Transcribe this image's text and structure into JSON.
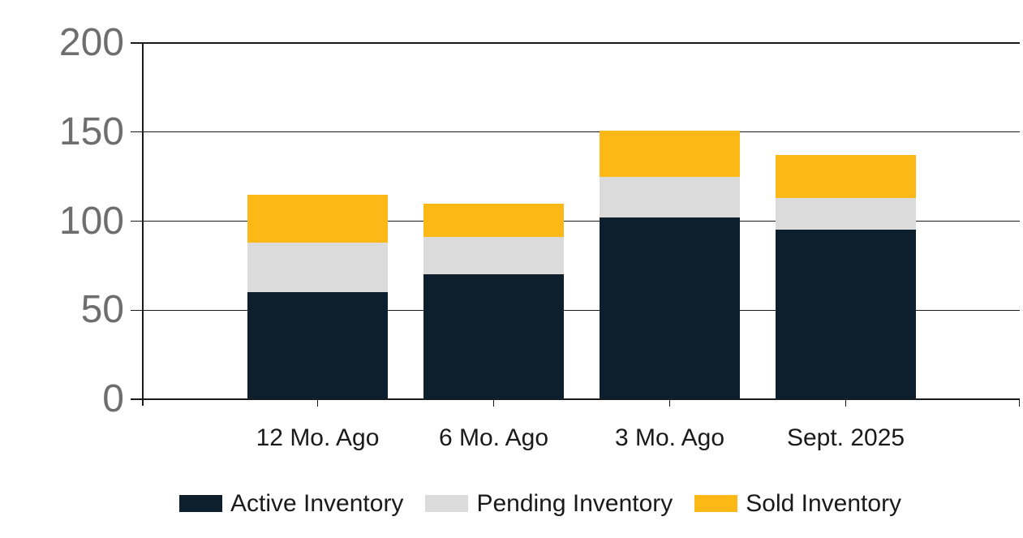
{
  "chart_data": {
    "type": "bar",
    "stacked": true,
    "categories": [
      "12 Mo. Ago",
      "6 Mo. Ago",
      "3 Mo. Ago",
      "Sept. 2025"
    ],
    "series": [
      {
        "name": "Active Inventory",
        "color": "#0d1f2d",
        "values": [
          60,
          70,
          102,
          95
        ]
      },
      {
        "name": "Pending Inventory",
        "color": "#dbdbdb",
        "values": [
          28,
          21,
          23,
          18
        ]
      },
      {
        "name": "Sold Inventory",
        "color": "#fbb817",
        "values": [
          27,
          19,
          26,
          24
        ]
      }
    ],
    "y_ticks": [
      "0",
      "50",
      "100",
      "150",
      "200"
    ],
    "ylim": [
      0,
      200
    ],
    "grid": "horizontal",
    "legend_position": "bottom",
    "colors": {
      "axis_tick_label": "#6e6e6e",
      "category_label": "#1a1a1a",
      "gridline": "#1a1a1a",
      "background": "#ffffff"
    }
  }
}
